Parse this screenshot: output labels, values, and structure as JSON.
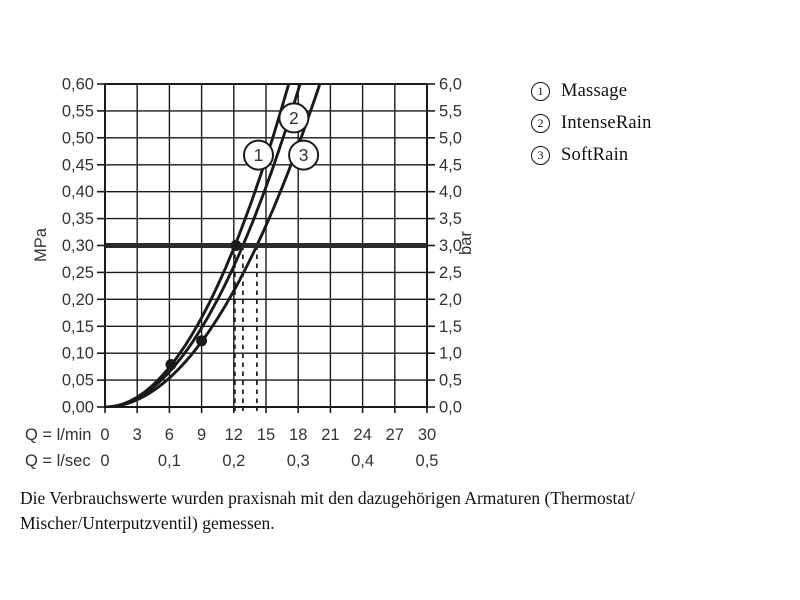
{
  "chart_data": {
    "type": "line",
    "title": "",
    "x_axis": {
      "primary_label": "Q = l/min",
      "primary_ticks": [
        0,
        3,
        6,
        9,
        12,
        15,
        18,
        21,
        24,
        27,
        30
      ],
      "primary_tick_labels": [
        "0",
        "3",
        "6",
        "9",
        "12",
        "15",
        "18",
        "21",
        "24",
        "27",
        "30"
      ],
      "secondary_label": "Q = l/sec",
      "secondary_tick_labels": [
        "0",
        "0,1",
        "0,2",
        "0,3",
        "0,4",
        "0,5"
      ],
      "secondary_tick_values_lmin": [
        0,
        6,
        12,
        18,
        24,
        30
      ],
      "min": 0,
      "max": 30,
      "grid": true
    },
    "y_axis_left": {
      "label": "MPa",
      "tick_labels": [
        "0,00",
        "0,05",
        "0,10",
        "0,15",
        "0,20",
        "0,25",
        "0,30",
        "0,35",
        "0,40",
        "0,45",
        "0,50",
        "0,55",
        "0,60"
      ],
      "min": 0,
      "max": 0.6,
      "grid": true
    },
    "y_axis_right": {
      "label": "bar",
      "tick_labels": [
        "0,0",
        "0,5",
        "1,0",
        "1,5",
        "2,0",
        "2,5",
        "3,0",
        "3,5",
        "4,0",
        "4,5",
        "5,0",
        "5,5",
        "6,0"
      ],
      "min": 0,
      "max": 6
    },
    "series": [
      {
        "id": "1",
        "name": "Massage",
        "flow_at_3bar_lmin": 12.1,
        "label_pos": {
          "q": 14.3,
          "p": 0.468
        }
      },
      {
        "id": "2",
        "name": "IntenseRain",
        "flow_at_3bar_lmin": 12.85,
        "label_pos": {
          "q": 17.6,
          "p": 0.537
        }
      },
      {
        "id": "3",
        "name": "SoftRain",
        "flow_at_3bar_lmin": 14.15,
        "label_pos": {
          "q": 18.5,
          "p": 0.468
        }
      }
    ],
    "reference_line": {
      "mpa": 0.3,
      "bar": 3.0
    },
    "dashed_drop_lines_lmin": [
      12.1,
      12.85,
      14.15
    ],
    "data_dots": [
      {
        "q": 6.15,
        "p": 0.079
      },
      {
        "q": 9.0,
        "p": 0.123
      },
      {
        "q": 12.2,
        "p": 0.3
      }
    ],
    "colors": {
      "line": "#1a1a1a",
      "grid": "#1a1a1a",
      "text": "#333333",
      "reference_line": "#2b2b2b",
      "background": "#ffffff"
    },
    "legend_position": "top-right"
  },
  "legend": {
    "items": [
      {
        "symbol": "1",
        "label": "Massage"
      },
      {
        "symbol": "2",
        "label": "IntenseRain"
      },
      {
        "symbol": "3",
        "label": "SoftRain"
      }
    ]
  },
  "caption": {
    "line1": "Die Verbrauchswerte wurden praxisnah mit den dazugehörigen Armaturen (Thermostat/",
    "line2": "Mischer/Unterputzventil) gemessen."
  }
}
